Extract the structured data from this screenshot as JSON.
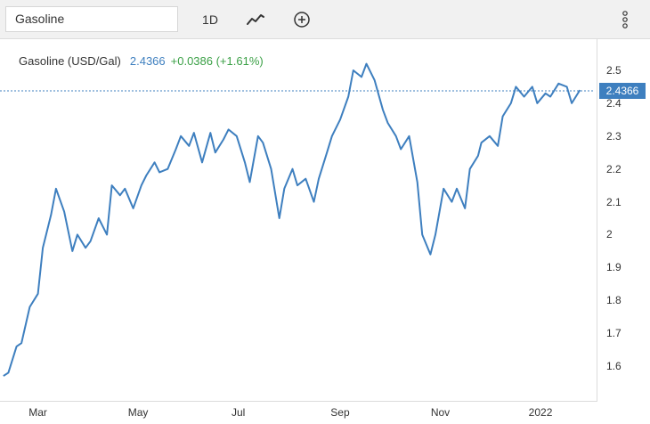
{
  "toolbar": {
    "search_value": "Gasoline",
    "period_label": "1D",
    "icons": {
      "chart_type": "line-chart-icon",
      "add": "plus-circle-icon",
      "more": "more-vertical-icon"
    }
  },
  "legend": {
    "name": "Gasoline (USD/Gal)",
    "price": "2.4366",
    "change": "+0.0386 (+1.61%)"
  },
  "price_tag": "2.4366",
  "colors": {
    "line": "#3e7fbf",
    "change_positive": "#3ba046",
    "price_tag_bg": "#3e7fbf"
  },
  "chart_data": {
    "type": "line",
    "ylim": [
      1.5,
      2.55
    ],
    "y_ticks": [
      "1.6",
      "1.7",
      "1.8",
      "1.9",
      "2",
      "2.1",
      "2.2",
      "2.3",
      "2.4",
      "2.5"
    ],
    "x_ticks": [
      "Mar",
      "May",
      "Jul",
      "Sep",
      "Nov",
      "2022"
    ],
    "x": [
      "2021-02-08",
      "2021-02-11",
      "2021-02-16",
      "2021-02-19",
      "2021-02-24",
      "2021-03-01",
      "2021-03-04",
      "2021-03-09",
      "2021-03-12",
      "2021-03-17",
      "2021-03-22",
      "2021-03-25",
      "2021-03-30",
      "2021-04-02",
      "2021-04-07",
      "2021-04-12",
      "2021-04-15",
      "2021-04-20",
      "2021-04-23",
      "2021-04-28",
      "2021-05-03",
      "2021-05-06",
      "2021-05-11",
      "2021-05-14",
      "2021-05-19",
      "2021-05-24",
      "2021-05-27",
      "2021-06-01",
      "2021-06-04",
      "2021-06-09",
      "2021-06-14",
      "2021-06-17",
      "2021-06-22",
      "2021-06-25",
      "2021-06-30",
      "2021-07-05",
      "2021-07-08",
      "2021-07-13",
      "2021-07-16",
      "2021-07-21",
      "2021-07-26",
      "2021-07-29",
      "2021-08-03",
      "2021-08-06",
      "2021-08-11",
      "2021-08-16",
      "2021-08-19",
      "2021-08-24",
      "2021-08-27",
      "2021-09-01",
      "2021-09-06",
      "2021-09-09",
      "2021-09-14",
      "2021-09-17",
      "2021-09-22",
      "2021-09-27",
      "2021-09-30",
      "2021-10-05",
      "2021-10-08",
      "2021-10-13",
      "2021-10-18",
      "2021-10-21",
      "2021-10-26",
      "2021-10-29",
      "2021-11-03",
      "2021-11-08",
      "2021-11-11",
      "2021-11-16",
      "2021-11-19",
      "2021-11-24",
      "2021-11-26",
      "2021-12-01",
      "2021-12-06",
      "2021-12-09",
      "2021-12-14",
      "2021-12-17",
      "2021-12-22",
      "2021-12-27",
      "2021-12-30",
      "2022-01-04",
      "2022-01-07",
      "2022-01-12",
      "2022-01-17",
      "2022-01-20",
      "2022-01-25"
    ],
    "series": [
      {
        "values": [
          1.57,
          1.58,
          1.66,
          1.67,
          1.78,
          1.82,
          1.96,
          2.06,
          2.14,
          2.07,
          1.95,
          2.0,
          1.96,
          1.98,
          2.05,
          2.0,
          2.15,
          2.12,
          2.14,
          2.08,
          2.15,
          2.18,
          2.22,
          2.19,
          2.2,
          2.26,
          2.3,
          2.27,
          2.31,
          2.22,
          2.31,
          2.25,
          2.29,
          2.32,
          2.3,
          2.22,
          2.16,
          2.3,
          2.28,
          2.2,
          2.05,
          2.14,
          2.2,
          2.15,
          2.17,
          2.1,
          2.17,
          2.25,
          2.3,
          2.35,
          2.42,
          2.5,
          2.48,
          2.52,
          2.47,
          2.38,
          2.34,
          2.3,
          2.26,
          2.3,
          2.16,
          2.0,
          1.94,
          2.0,
          2.14,
          2.1,
          2.14,
          2.08,
          2.2,
          2.24,
          2.28,
          2.3,
          2.27,
          2.36,
          2.4,
          2.45,
          2.42,
          2.45,
          2.4,
          2.43,
          2.42,
          2.46,
          2.45,
          2.4,
          2.44
        ]
      }
    ]
  }
}
